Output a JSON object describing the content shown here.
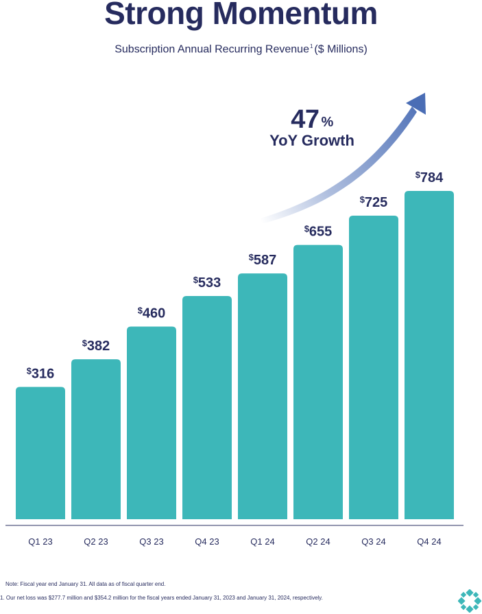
{
  "title": "Strong Momentum",
  "subtitle": {
    "text": "Subscription Annual Recurring Revenue",
    "footnote_marker": "1",
    "unit": "($ Millions)"
  },
  "growth": {
    "value": "47",
    "suffix": "%",
    "label": "YoY Growth"
  },
  "chart_data": {
    "type": "bar",
    "title": "Subscription Annual Recurring Revenue ($ Millions)",
    "xlabel": "",
    "ylabel": "",
    "categories": [
      "Q1 23",
      "Q2 23",
      "Q3 23",
      "Q4 23",
      "Q1 24",
      "Q2 24",
      "Q3 24",
      "Q4 24"
    ],
    "values": [
      316,
      382,
      460,
      533,
      587,
      655,
      725,
      784
    ],
    "value_prefix": "$",
    "ylim": [
      0,
      784
    ],
    "grid": false,
    "legend": "none",
    "bar_color": "#3db7b9"
  },
  "colors": {
    "navy": "#262b5e",
    "teal": "#3db7b9",
    "arrow": "#4a6db5"
  },
  "notes": {
    "note": "Note: Fiscal year end January 31. All data as of fiscal quarter end.",
    "footnote": "1.  Our net loss was $277.7 million and $354.2 million for the fiscal years ended January 31, 2023 and January 31, 2024, respectively."
  }
}
